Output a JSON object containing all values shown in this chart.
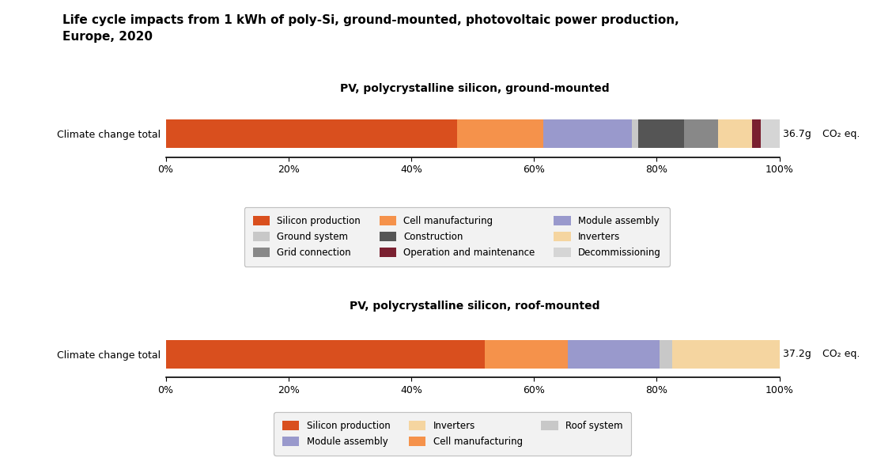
{
  "title": "Life cycle impacts from 1 kWh of poly-Si, ground-mounted, photovoltaic power production,\nEurope, 2020",
  "chart1_title": "PV, polycrystalline silicon, ground-mounted",
  "chart2_title": "PV, polycrystalline silicon, roof-mounted",
  "chart1_label": "Climate change total",
  "chart2_label": "Climate change total",
  "chart1_value": "36.7g",
  "chart2_value": "37.2g",
  "co2_label": "CO₂ eq.",
  "chart1_segments": [
    {
      "label": "Silicon production",
      "value": 47.5,
      "color": "#D94F1E"
    },
    {
      "label": "Cell manufacturing",
      "value": 14.0,
      "color": "#F5924B"
    },
    {
      "label": "Module assembly",
      "value": 14.5,
      "color": "#9999CC"
    },
    {
      "label": "Ground system",
      "value": 1.0,
      "color": "#C8C8C8"
    },
    {
      "label": "Construction",
      "value": 7.5,
      "color": "#555555"
    },
    {
      "label": "Grid connection",
      "value": 5.5,
      "color": "#888888"
    },
    {
      "label": "Inverters",
      "value": 5.5,
      "color": "#F5D5A0"
    },
    {
      "label": "Operation and maintenance",
      "value": 1.5,
      "color": "#7A2030"
    },
    {
      "label": "Decommissioning",
      "value": 3.0,
      "color": "#D5D5D5"
    }
  ],
  "chart2_segments": [
    {
      "label": "Silicon production",
      "value": 52.0,
      "color": "#D94F1E"
    },
    {
      "label": "Cell manufacturing",
      "value": 13.5,
      "color": "#F5924B"
    },
    {
      "label": "Module assembly",
      "value": 15.0,
      "color": "#9999CC"
    },
    {
      "label": "Roof system",
      "value": 2.0,
      "color": "#C8C8C8"
    },
    {
      "label": "Inverters",
      "value": 17.5,
      "color": "#F5D5A0"
    }
  ],
  "chart1_legend_order": [
    "Silicon production",
    "Ground system",
    "Grid connection",
    "Cell manufacturing",
    "Construction",
    "Operation and maintenance",
    "Module assembly",
    "Inverters",
    "Decommissioning"
  ],
  "chart2_legend_order": [
    "Silicon production",
    "Module assembly",
    "Inverters",
    "Cell manufacturing",
    "Roof system"
  ],
  "background_color": "#FFFFFF",
  "bar_height": 0.6,
  "title_fontsize": 11,
  "axis_fontsize": 9,
  "legend_fontsize": 8.5
}
